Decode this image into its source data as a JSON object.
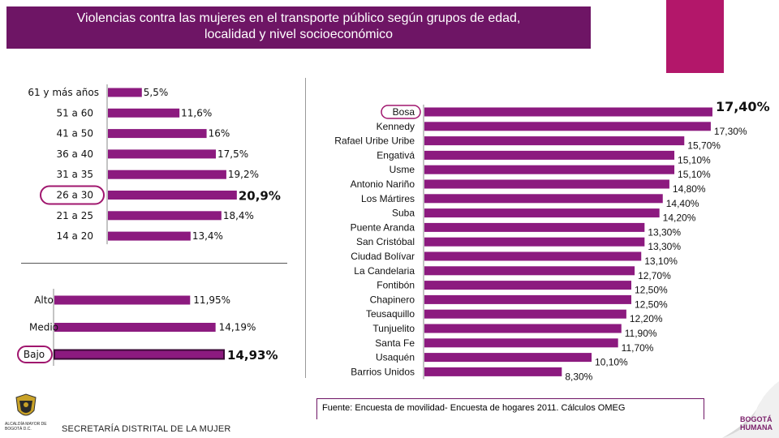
{
  "title_line1": "Violencias contra las mujeres en el transporte público según grupos de edad,",
  "title_line2": "localidad y nivel socioeconómico",
  "source": "Fuente: Encuesta de movilidad- Encuesta de hogares 2011. Cálculos OMEG",
  "footer": "SECRETARÍA DISTRITAL DE LA MUJER",
  "crest_text": "ALCALDÍA MAYOR DE BOGOTÁ D.C.",
  "logo_text_1": "BOGOTÁ",
  "logo_text_2": "HUMANA",
  "colors": {
    "bar": "#8c1a7f",
    "title_bg": "#6e1565",
    "accent": "#b3176a",
    "highlight_ring": "#a0166e"
  },
  "chart_data": [
    {
      "type": "bar",
      "orientation": "horizontal",
      "categories": [
        "61 y más años",
        "51 a 60",
        "41 a 50",
        "36 a 40",
        "31 a 35",
        "26 a 30",
        "21 a 25",
        "14 a 20"
      ],
      "values": [
        5.5,
        11.6,
        16,
        17.5,
        19.2,
        20.9,
        18.4,
        13.4
      ],
      "value_labels": [
        "5,5%",
        "11,6%",
        "16%",
        "17,5%",
        "19,2%",
        "20,9%",
        "18,4%",
        "13,4%"
      ],
      "highlight": "26 a 30"
    },
    {
      "type": "bar",
      "orientation": "horizontal",
      "categories": [
        "Alto",
        "Medio",
        "Bajo"
      ],
      "values": [
        11.95,
        14.19,
        14.93
      ],
      "value_labels": [
        "11,95%",
        "14,19%",
        "14,93%"
      ],
      "highlight": "Bajo"
    },
    {
      "type": "bar",
      "orientation": "horizontal",
      "categories": [
        "Bosa",
        "Kennedy",
        "Rafael Uribe Uribe",
        "Engativá",
        "Usme",
        "Antonio Nariño",
        "Los Mártires",
        "Suba",
        "Puente Aranda",
        "San Cristóbal",
        "Ciudad Bolívar",
        "La Candelaria",
        "Fontibón",
        "Chapinero",
        "Teusaquillo",
        "Tunjuelito",
        "Santa Fe",
        "Usaquén",
        "Barrios Unidos"
      ],
      "values": [
        17.4,
        17.3,
        15.7,
        15.1,
        15.1,
        14.8,
        14.4,
        14.2,
        13.3,
        13.3,
        13.1,
        12.7,
        12.5,
        12.5,
        12.2,
        11.9,
        11.7,
        10.1,
        8.3
      ],
      "value_labels": [
        "17,40%",
        "17,30%",
        "15,70%",
        "15,10%",
        "15,10%",
        "14,80%",
        "14,40%",
        "14,20%",
        "13,30%",
        "13,30%",
        "13,10%",
        "12,70%",
        "12,50%",
        "12,50%",
        "12,20%",
        "11,90%",
        "11,70%",
        "10,10%",
        "8,30%"
      ],
      "highlight": "Bosa"
    }
  ]
}
